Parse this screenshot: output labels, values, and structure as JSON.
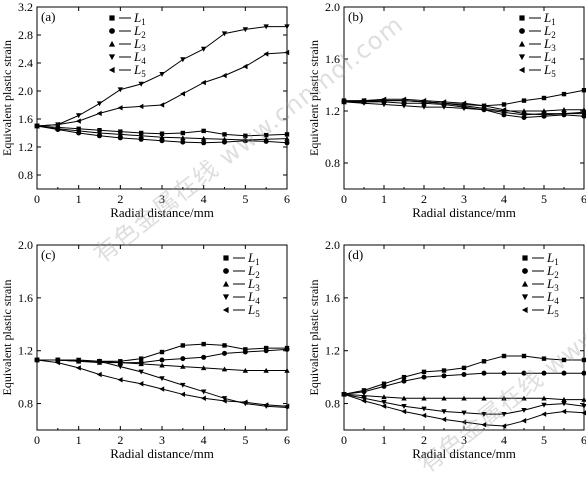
{
  "colors": {
    "axis": "#000000",
    "line": "#000000",
    "background": "#ffffff",
    "watermark": "#a0a0a0"
  },
  "watermark": "有色金属在线 www.cnnmol.com",
  "chart_data": [
    {
      "type": "line",
      "panel_label": "(a)",
      "xlabel": "Radial distance/mm",
      "ylabel": "Equivalent plastic strain",
      "xlim": [
        0,
        6
      ],
      "ylim": [
        0.6,
        3.2
      ],
      "xticks": [
        "0",
        "1",
        "2",
        "3",
        "4",
        "5",
        "6"
      ],
      "yticks": [
        "0.8",
        "1.2",
        "1.6",
        "2.0",
        "2.4",
        "2.8",
        "3.2"
      ],
      "legend_position": "top-center",
      "x": [
        0,
        0.5,
        1.0,
        1.5,
        2.0,
        2.5,
        3.0,
        3.5,
        4.0,
        4.5,
        5.0,
        5.5,
        6.0
      ],
      "series": [
        {
          "name": "L1",
          "marker": "square",
          "values": [
            1.5,
            1.48,
            1.46,
            1.44,
            1.42,
            1.4,
            1.39,
            1.4,
            1.43,
            1.38,
            1.36,
            1.37,
            1.38
          ]
        },
        {
          "name": "L2",
          "marker": "circle",
          "values": [
            1.5,
            1.45,
            1.4,
            1.36,
            1.33,
            1.31,
            1.29,
            1.27,
            1.26,
            1.27,
            1.29,
            1.28,
            1.26
          ]
        },
        {
          "name": "L3",
          "marker": "triangle-up",
          "values": [
            1.5,
            1.46,
            1.43,
            1.4,
            1.38,
            1.36,
            1.34,
            1.33,
            1.32,
            1.31,
            1.3,
            1.31,
            1.32
          ]
        },
        {
          "name": "L4",
          "marker": "triangle-down",
          "values": [
            1.5,
            1.52,
            1.65,
            1.82,
            2.02,
            2.1,
            2.24,
            2.45,
            2.6,
            2.82,
            2.88,
            2.92,
            2.92
          ]
        },
        {
          "name": "L5",
          "marker": "triangle-left",
          "values": [
            1.5,
            1.52,
            1.57,
            1.68,
            1.76,
            1.78,
            1.8,
            1.96,
            2.12,
            2.22,
            2.35,
            2.53,
            2.55
          ]
        }
      ]
    },
    {
      "type": "line",
      "panel_label": "(b)",
      "xlabel": "Radial distance/mm",
      "ylabel": "Equivalent plastic strain",
      "xlim": [
        0,
        6
      ],
      "ylim": [
        0.6,
        2.0
      ],
      "xticks": [
        "0",
        "1",
        "2",
        "3",
        "4",
        "5",
        "6"
      ],
      "yticks": [
        "0.8",
        "1.2",
        "1.6",
        "2.0"
      ],
      "legend_position": "top-right",
      "x": [
        0,
        0.5,
        1.0,
        1.5,
        2.0,
        2.5,
        3.0,
        3.5,
        4.0,
        4.5,
        5.0,
        5.5,
        6.0
      ],
      "series": [
        {
          "name": "L1",
          "marker": "square",
          "values": [
            1.28,
            1.28,
            1.28,
            1.28,
            1.27,
            1.26,
            1.25,
            1.24,
            1.25,
            1.28,
            1.3,
            1.33,
            1.36
          ]
        },
        {
          "name": "L2",
          "marker": "circle",
          "values": [
            1.27,
            1.27,
            1.27,
            1.26,
            1.26,
            1.25,
            1.23,
            1.21,
            1.17,
            1.15,
            1.16,
            1.17,
            1.16
          ]
        },
        {
          "name": "L3",
          "marker": "triangle-up",
          "values": [
            1.27,
            1.27,
            1.28,
            1.28,
            1.27,
            1.26,
            1.24,
            1.22,
            1.2,
            1.2,
            1.2,
            1.21,
            1.21
          ]
        },
        {
          "name": "L4",
          "marker": "triangle-down",
          "values": [
            1.27,
            1.26,
            1.25,
            1.24,
            1.23,
            1.23,
            1.22,
            1.21,
            1.19,
            1.17,
            1.18,
            1.18,
            1.19
          ]
        },
        {
          "name": "L5",
          "marker": "triangle-left",
          "values": [
            1.27,
            1.28,
            1.29,
            1.29,
            1.28,
            1.27,
            1.26,
            1.24,
            1.21,
            1.18,
            1.17,
            1.18,
            1.18
          ]
        }
      ]
    },
    {
      "type": "line",
      "panel_label": "(c)",
      "xlabel": "Radial distance/mm",
      "ylabel": "Equivalent plastic strain",
      "xlim": [
        0,
        6
      ],
      "ylim": [
        0.6,
        2.0
      ],
      "xticks": [
        "0",
        "1",
        "2",
        "3",
        "4",
        "5",
        "6"
      ],
      "yticks": [
        "0.8",
        "1.2",
        "1.6",
        "2.0"
      ],
      "legend_position": "top-right",
      "x": [
        0,
        0.5,
        1.0,
        1.5,
        2.0,
        2.5,
        3.0,
        3.5,
        4.0,
        4.5,
        5.0,
        5.5,
        6.0
      ],
      "series": [
        {
          "name": "L1",
          "marker": "square",
          "values": [
            1.13,
            1.13,
            1.12,
            1.12,
            1.12,
            1.14,
            1.19,
            1.24,
            1.25,
            1.24,
            1.21,
            1.22,
            1.22
          ]
        },
        {
          "name": "L2",
          "marker": "circle",
          "values": [
            1.13,
            1.13,
            1.12,
            1.12,
            1.11,
            1.11,
            1.13,
            1.14,
            1.15,
            1.18,
            1.19,
            1.2,
            1.21
          ]
        },
        {
          "name": "L3",
          "marker": "triangle-up",
          "values": [
            1.13,
            1.13,
            1.12,
            1.11,
            1.11,
            1.1,
            1.09,
            1.08,
            1.07,
            1.06,
            1.05,
            1.05,
            1.05
          ]
        },
        {
          "name": "L4",
          "marker": "triangle-down",
          "values": [
            1.13,
            1.13,
            1.13,
            1.12,
            1.08,
            1.04,
            0.99,
            0.94,
            0.89,
            0.84,
            0.8,
            0.78,
            0.77
          ]
        },
        {
          "name": "L5",
          "marker": "triangle-left",
          "values": [
            1.13,
            1.11,
            1.07,
            1.02,
            0.98,
            0.95,
            0.91,
            0.87,
            0.84,
            0.82,
            0.81,
            0.79,
            0.78
          ]
        }
      ]
    },
    {
      "type": "line",
      "panel_label": "(d)",
      "xlabel": "Radial distance/mm",
      "ylabel": "Equivalent plastic strain",
      "xlim": [
        0,
        6
      ],
      "ylim": [
        0.6,
        2.0
      ],
      "xticks": [
        "0",
        "1",
        "2",
        "3",
        "4",
        "5",
        "6"
      ],
      "yticks": [
        "0.8",
        "1.2",
        "1.6",
        "2.0"
      ],
      "legend_position": "top-right",
      "x": [
        0,
        0.5,
        1.0,
        1.5,
        2.0,
        2.5,
        3.0,
        3.5,
        4.0,
        4.5,
        5.0,
        5.5,
        6.0
      ],
      "series": [
        {
          "name": "L1",
          "marker": "square",
          "values": [
            0.87,
            0.9,
            0.95,
            1.0,
            1.04,
            1.05,
            1.07,
            1.12,
            1.16,
            1.16,
            1.14,
            1.13,
            1.13
          ]
        },
        {
          "name": "L2",
          "marker": "circle",
          "values": [
            0.87,
            0.89,
            0.93,
            0.97,
            1.0,
            1.01,
            1.02,
            1.03,
            1.03,
            1.03,
            1.03,
            1.03,
            1.03
          ]
        },
        {
          "name": "L3",
          "marker": "triangle-up",
          "values": [
            0.87,
            0.86,
            0.85,
            0.84,
            0.84,
            0.84,
            0.84,
            0.84,
            0.84,
            0.84,
            0.84,
            0.83,
            0.83
          ]
        },
        {
          "name": "L4",
          "marker": "triangle-down",
          "values": [
            0.87,
            0.84,
            0.81,
            0.78,
            0.76,
            0.74,
            0.73,
            0.72,
            0.72,
            0.75,
            0.79,
            0.8,
            0.78
          ]
        },
        {
          "name": "L5",
          "marker": "triangle-left",
          "values": [
            0.87,
            0.82,
            0.78,
            0.74,
            0.71,
            0.68,
            0.66,
            0.64,
            0.63,
            0.67,
            0.72,
            0.74,
            0.73
          ]
        }
      ]
    }
  ]
}
